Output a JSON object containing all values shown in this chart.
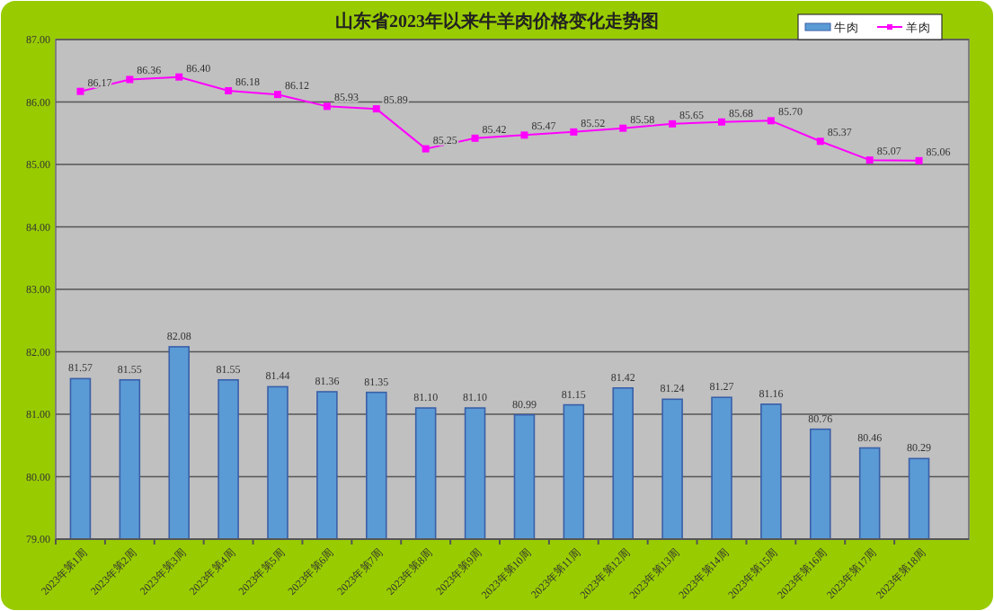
{
  "chart_data": {
    "type": "bar",
    "title": "山东省2023年以来牛羊肉价格变化走势图",
    "categories": [
      "2023年第1周",
      "2023年第2周",
      "2023年第3周",
      "2023年第4周",
      "2023年第5周",
      "2023年第6周",
      "2023年第7周",
      "2023年第8周",
      "2023年第9周",
      "2023年第10周",
      "2023年第11周",
      "2023年第12周",
      "2023年第13周",
      "2023年第14周",
      "2023年第15周",
      "2023年第16周",
      "2023年第17周",
      "2023年第18周"
    ],
    "series": [
      {
        "name": "牛肉",
        "color": "#5b9bd5",
        "values": [
          81.57,
          81.55,
          82.08,
          81.55,
          81.44,
          81.36,
          81.35,
          81.1,
          81.1,
          80.99,
          81.15,
          81.42,
          81.24,
          81.27,
          81.16,
          80.76,
          80.46,
          80.29
        ],
        "value_labels": [
          "81.57",
          "81.55",
          "82.08",
          "81.55",
          "81.44",
          "81.36",
          "81.35",
          "81.10",
          "81.10",
          "80.99",
          "81.15",
          "81.42",
          "81.24",
          "81.27",
          "81.16",
          "80.76",
          "80.46",
          "80.29"
        ]
      },
      {
        "name": "羊肉",
        "type": "line",
        "color": "#ff00ff",
        "marker": "square",
        "values": [
          86.17,
          86.36,
          86.4,
          86.18,
          86.12,
          85.93,
          85.89,
          85.25,
          85.42,
          85.47,
          85.52,
          85.58,
          85.65,
          85.68,
          85.7,
          85.37,
          85.07,
          85.06
        ],
        "value_labels": [
          "86.17",
          "86.36",
          "86.40",
          "86.18",
          "86.12",
          "85.93",
          "85.89",
          "85.25",
          "85.42",
          "85.47",
          "85.52",
          "85.58",
          "85.65",
          "85.68",
          "85.70",
          "85.37",
          "85.07",
          "85.06"
        ]
      }
    ],
    "ylim": [
      79,
      87
    ],
    "yticks": [
      {
        "value": 79,
        "label": "79.00"
      },
      {
        "value": 80,
        "label": "80.00"
      },
      {
        "value": 81,
        "label": "81.00"
      },
      {
        "value": 82,
        "label": "82.00"
      },
      {
        "value": 83,
        "label": "83.00"
      },
      {
        "value": 84,
        "label": "84.00"
      },
      {
        "value": 85,
        "label": "85.00"
      },
      {
        "value": 86,
        "label": "86.00"
      },
      {
        "value": 87,
        "label": "87.00"
      }
    ],
    "grid": "y",
    "legend": "top right"
  }
}
